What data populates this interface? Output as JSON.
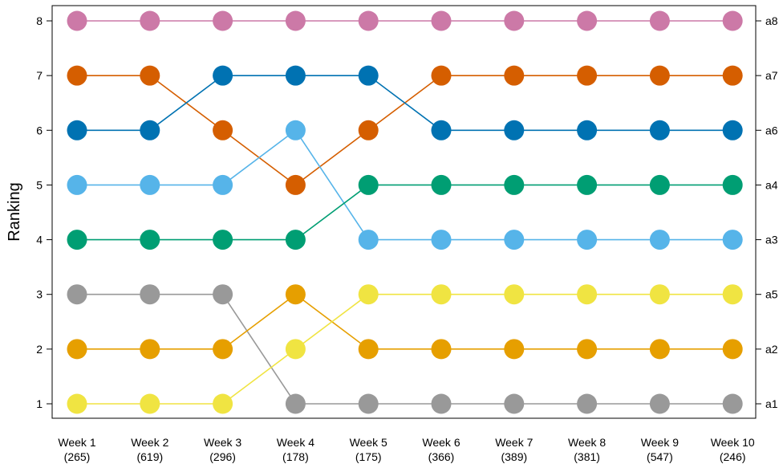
{
  "chart_data": {
    "type": "line",
    "title": "",
    "xlabel": "",
    "ylabel": "Ranking",
    "ylim": [
      1,
      8
    ],
    "y_ticks": [
      "1",
      "2",
      "3",
      "4",
      "5",
      "6",
      "7",
      "8"
    ],
    "x_labels": [
      {
        "week": "Week 1",
        "count": "(265)"
      },
      {
        "week": "Week 2",
        "count": "(619)"
      },
      {
        "week": "Week 3",
        "count": "(296)"
      },
      {
        "week": "Week 4",
        "count": "(178)"
      },
      {
        "week": "Week 5",
        "count": "(175)"
      },
      {
        "week": "Week 6",
        "count": "(366)"
      },
      {
        "week": "Week 7",
        "count": "(389)"
      },
      {
        "week": "Week 8",
        "count": "(381)"
      },
      {
        "week": "Week 9",
        "count": "(547)"
      },
      {
        "week": "Week 10",
        "count": "(246)"
      }
    ],
    "right_labels": {
      "8": "a8",
      "7": "a7",
      "6": "a6",
      "5": "a4",
      "4": "a3",
      "3": "a5",
      "2": "a2",
      "1": "a1"
    },
    "grid": false,
    "series": [
      {
        "color": "#CC79A7",
        "values": [
          8,
          8,
          8,
          8,
          8,
          8,
          8,
          8,
          8,
          8
        ]
      },
      {
        "color": "#D55E00",
        "values": [
          7,
          7,
          6,
          5,
          6,
          7,
          7,
          7,
          7,
          7
        ]
      },
      {
        "color": "#0072B2",
        "values": [
          6,
          6,
          7,
          7,
          7,
          6,
          6,
          6,
          6,
          6
        ]
      },
      {
        "color": "#56B4E9",
        "values": [
          5,
          5,
          5,
          6,
          4,
          4,
          4,
          4,
          4,
          4
        ]
      },
      {
        "color": "#009E73",
        "values": [
          4,
          4,
          4,
          4,
          5,
          5,
          5,
          5,
          5,
          5
        ]
      },
      {
        "color": "#999999",
        "values": [
          3,
          3,
          3,
          1,
          1,
          1,
          1,
          1,
          1,
          1
        ]
      },
      {
        "color": "#E69F00",
        "values": [
          2,
          2,
          2,
          3,
          2,
          2,
          2,
          2,
          2,
          2
        ]
      },
      {
        "color": "#F0E442",
        "values": [
          1,
          1,
          1,
          2,
          3,
          3,
          3,
          3,
          3,
          3
        ]
      }
    ]
  }
}
